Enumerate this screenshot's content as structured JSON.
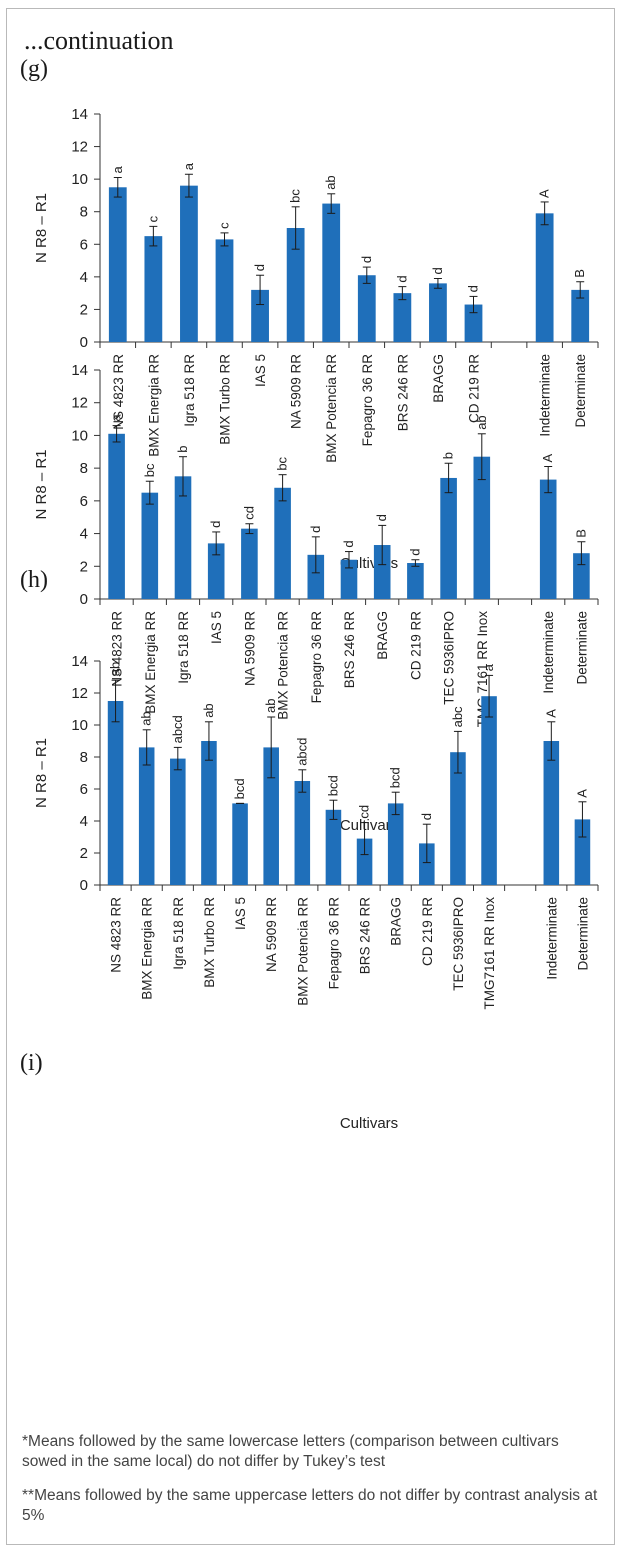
{
  "header": {
    "continuation": "...continuation"
  },
  "panels": [
    {
      "key": "g",
      "label": "(g)"
    },
    {
      "key": "h",
      "label": "(h)"
    },
    {
      "key": "i",
      "label": "(i)"
    }
  ],
  "notes": [
    "*Means followed by the same lowercase letters (comparison between cultivars sowed in the same local) do not differ by Tukey’s test",
    "**Means followed by the same uppercase letters do not differ by contrast analysis at 5%"
  ],
  "chart_data": [
    {
      "type": "bar",
      "panel": "(g)",
      "xlabel": "Cultivars",
      "ylabel": "N R8 – R1",
      "ylim": [
        0,
        14
      ],
      "yticks": [
        0,
        2,
        4,
        6,
        8,
        10,
        12,
        14
      ],
      "bar_color": "#1f6fba",
      "categories": [
        "NS 4823 RR",
        "BMX Energia RR",
        "Igra 518 RR",
        "BMX Turbo RR",
        "IAS 5",
        "NA 5909 RR",
        "BMX Potencia RR",
        "Fepagro 36 RR",
        "BRS 246 RR",
        "BRAGG",
        "CD 219 RR",
        "",
        "Indeterminate",
        "Determinate"
      ],
      "values": [
        9.5,
        6.5,
        9.6,
        6.3,
        3.2,
        7.0,
        8.5,
        4.1,
        3.0,
        3.6,
        2.3,
        null,
        7.9,
        3.2
      ],
      "errors": [
        0.6,
        0.6,
        0.7,
        0.4,
        0.9,
        1.3,
        0.6,
        0.5,
        0.4,
        0.3,
        0.5,
        null,
        0.7,
        0.5
      ],
      "letters": [
        "a",
        "c",
        "a",
        "c",
        "d",
        "bc",
        "ab",
        "d",
        "d",
        "d",
        "d",
        "",
        "A",
        "B"
      ]
    },
    {
      "type": "bar",
      "panel": "(h)",
      "xlabel": "Cultivars",
      "ylabel": "N R8 – R1",
      "ylim": [
        0,
        14
      ],
      "yticks": [
        0,
        2,
        4,
        6,
        8,
        10,
        12,
        14
      ],
      "bar_color": "#1f6fba",
      "categories": [
        "NS 4823 RR",
        "BMX Energia RR",
        "Igra 518 RR",
        "IAS 5",
        "NA 5909 RR",
        "BMX Potencia RR",
        "Fepagro 36 RR",
        "BRS 246 RR",
        "BRAGG",
        "CD 219 RR",
        "TEC 5936IPRO",
        "TMG 7161 RR Inox",
        "",
        "Indeterminate",
        "Determinate"
      ],
      "values": [
        10.1,
        6.5,
        7.5,
        3.4,
        4.3,
        6.8,
        2.7,
        2.4,
        3.3,
        2.2,
        7.4,
        8.7,
        null,
        7.3,
        2.8
      ],
      "errors": [
        0.5,
        0.7,
        1.2,
        0.7,
        0.3,
        0.8,
        1.1,
        0.5,
        1.2,
        0.2,
        0.9,
        1.4,
        null,
        0.8,
        0.7
      ],
      "letters": [
        "a",
        "bc",
        "b",
        "d",
        "cd",
        "bc",
        "d",
        "d",
        "d",
        "d",
        "b",
        "ab",
        "",
        "A",
        "B"
      ]
    },
    {
      "type": "bar",
      "panel": "(i)",
      "xlabel": "Cultivars",
      "ylabel": "N R8 – R1",
      "ylim": [
        0,
        14
      ],
      "yticks": [
        0,
        2,
        4,
        6,
        8,
        10,
        12,
        14
      ],
      "bar_color": "#1f6fba",
      "categories": [
        "NS 4823 RR",
        "BMX Energia RR",
        "Igra 518 RR",
        "BMX Turbo RR",
        "IAS 5",
        "NA 5909 RR",
        "BMX Potencia RR",
        "Fepagro 36 RR",
        "BRS 246 RR",
        "BRAGG",
        "CD 219 RR",
        "TEC 5936IPRO",
        "TMG7161 RR Inox",
        "",
        "Indeterminate",
        "Determinate"
      ],
      "values": [
        11.5,
        8.6,
        7.9,
        9.0,
        5.1,
        8.6,
        6.5,
        4.7,
        2.9,
        5.1,
        2.6,
        8.3,
        11.8,
        null,
        9.0,
        4.1
      ],
      "errors": [
        1.3,
        1.1,
        0.7,
        1.2,
        0.0,
        1.9,
        0.7,
        0.6,
        1.0,
        0.7,
        1.2,
        1.3,
        1.3,
        null,
        1.2,
        1.1
      ],
      "letters": [
        "ab",
        "ab",
        "abcd",
        "ab",
        "bcd",
        "ab",
        "abcd",
        "bcd",
        "cd",
        "bcd",
        "d",
        "abc",
        "a",
        "",
        "A",
        "A"
      ]
    }
  ]
}
